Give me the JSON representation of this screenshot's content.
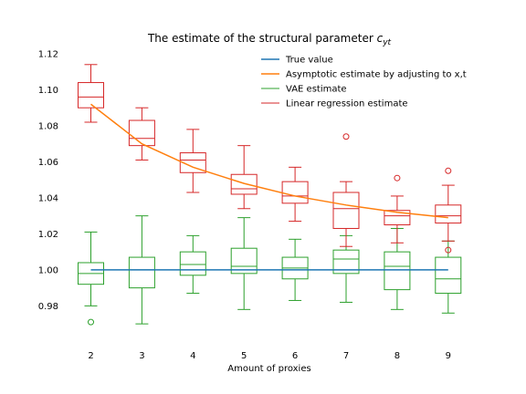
{
  "chart_data": {
    "type": "box",
    "title": "The estimate of the structural parameter ",
    "title_symbol": "c",
    "title_subscript": "yt",
    "xlabel": "Amount of proxies",
    "ylabel": "",
    "x": [
      2,
      3,
      4,
      5,
      6,
      7,
      8,
      9
    ],
    "ylim": [
      0.965,
      1.122
    ],
    "y_ticks": [
      0.98,
      1.0,
      1.02,
      1.04,
      1.06,
      1.08,
      1.1,
      1.12
    ],
    "y_tick_labels": [
      "0.98",
      "1.00",
      "1.02",
      "1.04",
      "1.06",
      "1.08",
      "1.10",
      "1.12"
    ],
    "grid": false,
    "legend_position": "top-right",
    "legend": [
      {
        "label": "True value",
        "color": "#1f77b4",
        "kind": "line"
      },
      {
        "label": "Asymptotic estimate by adjusting to x,t",
        "color": "#ff7f0e",
        "kind": "line"
      },
      {
        "label": "VAE estimate",
        "color": "#2ca02c",
        "kind": "box"
      },
      {
        "label": "Linear regression estimate",
        "color": "#d62728",
        "kind": "box"
      }
    ],
    "true_value": {
      "value": 1.0,
      "x_range": [
        2,
        9
      ]
    },
    "asymptotic": [
      1.092,
      1.07,
      1.057,
      1.048,
      1.041,
      1.036,
      1.032,
      1.029
    ],
    "vae_boxes": [
      {
        "x": 2,
        "whislo": 0.98,
        "q1": 0.992,
        "med": 0.998,
        "q3": 1.004,
        "whishi": 1.021,
        "fliers": [
          0.971
        ]
      },
      {
        "x": 3,
        "whislo": 0.97,
        "q1": 0.99,
        "med": 1.0,
        "q3": 1.007,
        "whishi": 1.03,
        "fliers": []
      },
      {
        "x": 4,
        "whislo": 0.987,
        "q1": 0.997,
        "med": 1.003,
        "q3": 1.01,
        "whishi": 1.019,
        "fliers": []
      },
      {
        "x": 5,
        "whislo": 0.978,
        "q1": 0.998,
        "med": 1.002,
        "q3": 1.012,
        "whishi": 1.029,
        "fliers": []
      },
      {
        "x": 6,
        "whislo": 0.983,
        "q1": 0.995,
        "med": 1.001,
        "q3": 1.007,
        "whishi": 1.017,
        "fliers": []
      },
      {
        "x": 7,
        "whislo": 0.982,
        "q1": 0.998,
        "med": 1.006,
        "q3": 1.011,
        "whishi": 1.019,
        "fliers": []
      },
      {
        "x": 8,
        "whislo": 0.978,
        "q1": 0.989,
        "med": 1.002,
        "q3": 1.01,
        "whishi": 1.023,
        "fliers": []
      },
      {
        "x": 9,
        "whislo": 0.976,
        "q1": 0.987,
        "med": 0.995,
        "q3": 1.007,
        "whishi": 1.016,
        "fliers": []
      }
    ],
    "lr_boxes": [
      {
        "x": 2,
        "whislo": 1.082,
        "q1": 1.09,
        "med": 1.096,
        "q3": 1.104,
        "whishi": 1.114,
        "fliers": []
      },
      {
        "x": 3,
        "whislo": 1.061,
        "q1": 1.069,
        "med": 1.073,
        "q3": 1.083,
        "whishi": 1.09,
        "fliers": []
      },
      {
        "x": 4,
        "whislo": 1.043,
        "q1": 1.054,
        "med": 1.061,
        "q3": 1.065,
        "whishi": 1.078,
        "fliers": []
      },
      {
        "x": 5,
        "whislo": 1.034,
        "q1": 1.042,
        "med": 1.045,
        "q3": 1.053,
        "whishi": 1.069,
        "fliers": []
      },
      {
        "x": 6,
        "whislo": 1.027,
        "q1": 1.037,
        "med": 1.041,
        "q3": 1.049,
        "whishi": 1.057,
        "fliers": []
      },
      {
        "x": 7,
        "whislo": 1.013,
        "q1": 1.023,
        "med": 1.034,
        "q3": 1.043,
        "whishi": 1.049,
        "fliers": [
          1.074
        ]
      },
      {
        "x": 8,
        "whislo": 1.015,
        "q1": 1.025,
        "med": 1.03,
        "q3": 1.033,
        "whishi": 1.041,
        "fliers": [
          1.051
        ]
      },
      {
        "x": 9,
        "whislo": 1.016,
        "q1": 1.026,
        "med": 1.03,
        "q3": 1.036,
        "whishi": 1.047,
        "fliers": [
          1.055,
          1.011
        ]
      }
    ],
    "colors": {
      "true_value": "#1f77b4",
      "asymptotic": "#ff7f0e",
      "vae": "#2ca02c",
      "linear_regression": "#d62728"
    }
  }
}
